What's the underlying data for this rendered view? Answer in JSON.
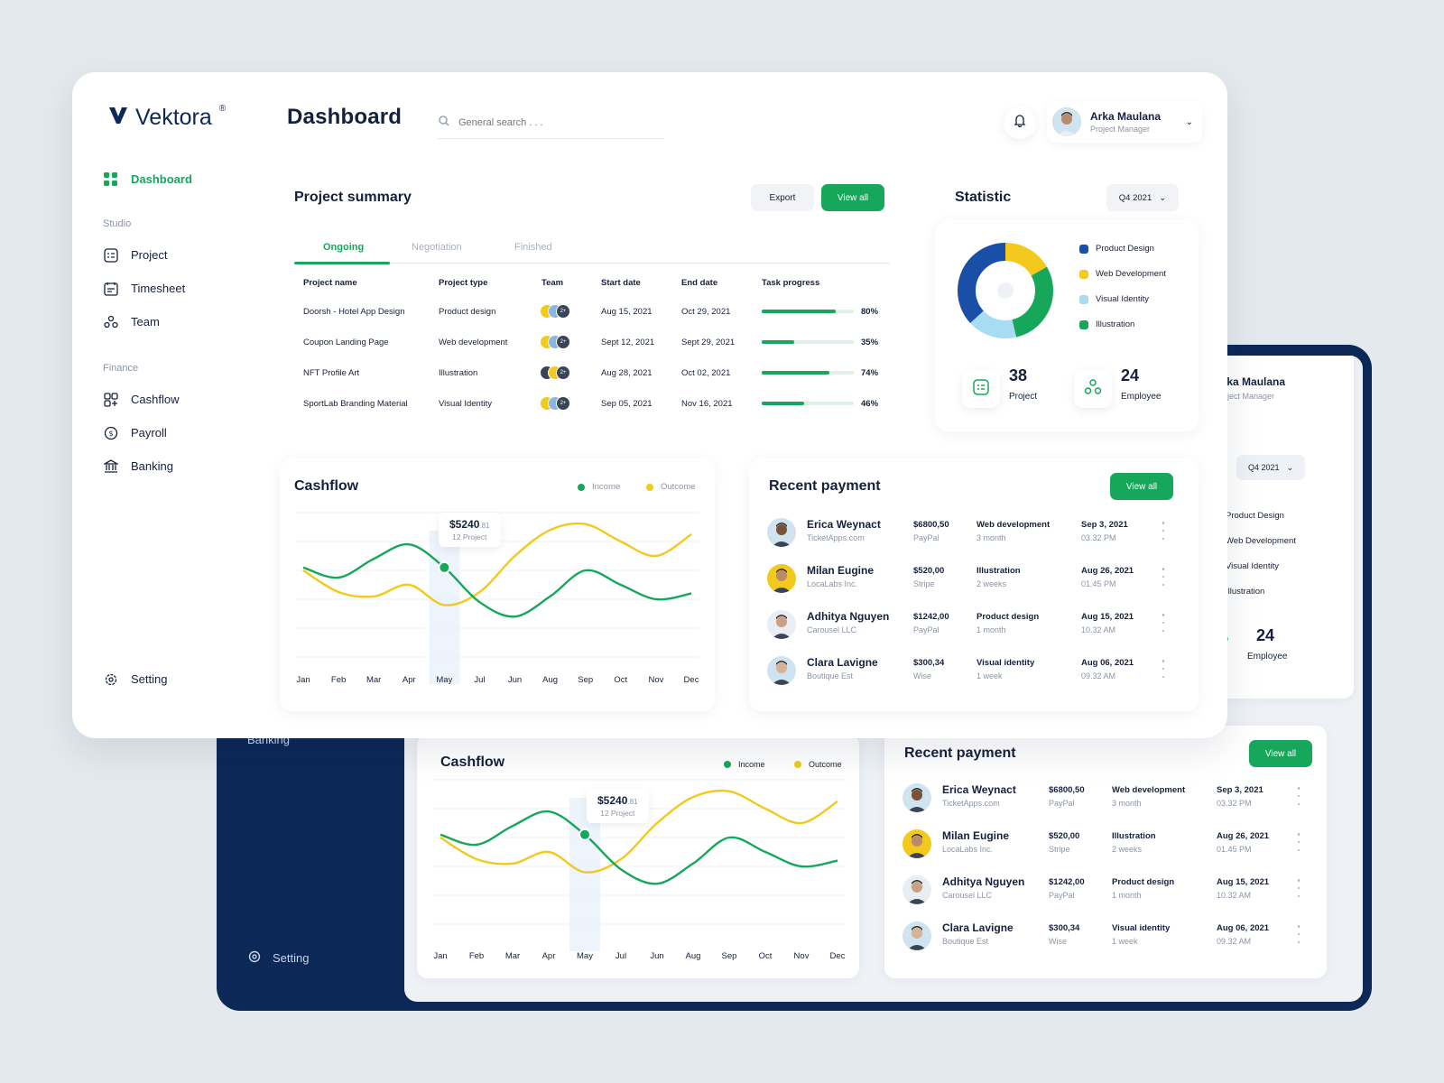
{
  "brand": {
    "name": "Vektora",
    "mark": "®"
  },
  "page_title": "Dashboard",
  "search": {
    "placeholder": "General search . . ."
  },
  "user": {
    "name": "Arka Maulana",
    "role": "Project Manager"
  },
  "sidebar": {
    "dashboard": "Dashboard",
    "studio_section": "Studio",
    "finance_section": "Finance",
    "items": [
      {
        "label": "Project",
        "icon": "project-icon"
      },
      {
        "label": "Timesheet",
        "icon": "timesheet-icon"
      },
      {
        "label": "Team",
        "icon": "team-icon"
      },
      {
        "label": "Cashflow",
        "icon": "cashflow-icon"
      },
      {
        "label": "Payroll",
        "icon": "payroll-icon"
      },
      {
        "label": "Banking",
        "icon": "banking-icon"
      }
    ],
    "setting": "Setting"
  },
  "project_summary": {
    "title": "Project summary",
    "export_label": "Export",
    "view_all_label": "View all",
    "tabs": [
      "Ongoing",
      "Negotiation",
      "Finished"
    ],
    "columns": [
      "Project name",
      "Project type",
      "Team",
      "Start date",
      "End date",
      "Task progress"
    ],
    "rows": [
      {
        "name": "Doorsh - Hotel App Design",
        "type": "Product design",
        "start": "Aug 15, 2021",
        "end": "Oct 29, 2021",
        "progress": 80,
        "progress_label": "80%",
        "more": "2+"
      },
      {
        "name": "Coupon Landing Page",
        "type": "Web development",
        "start": "Sept 12, 2021",
        "end": "Sept 29, 2021",
        "progress": 35,
        "progress_label": "35%",
        "more": "2+"
      },
      {
        "name": "NFT Profile Art",
        "type": "Illustration",
        "start": "Aug 28, 2021",
        "end": "Oct 02, 2021",
        "progress": 74,
        "progress_label": "74%",
        "more": "2+"
      },
      {
        "name": "SportLab Branding Material",
        "type": "Visual Identity",
        "start": "Sep 05, 2021",
        "end": "Nov 16, 2021",
        "progress": 46,
        "progress_label": "46%",
        "more": "2+"
      }
    ]
  },
  "statistic": {
    "title": "Statistic",
    "period": "Q4 2021",
    "legend": [
      {
        "label": "Product Design",
        "color": "#1a4fa8"
      },
      {
        "label": "Web Development",
        "color": "#f2c91c"
      },
      {
        "label": "Visual Identity",
        "color": "#a8dcf2"
      },
      {
        "label": "Illustration",
        "color": "#17a75a"
      }
    ],
    "project_count": "38",
    "project_label": "Project",
    "employee_count": "24",
    "employee_label": "Employee"
  },
  "cashflow": {
    "title": "Cashflow",
    "legend_income": "Income",
    "legend_outcome": "Outcome",
    "tooltip_value": "$5240",
    "tooltip_cents": ".81",
    "tooltip_sub": "12 Project"
  },
  "recent_payment": {
    "title": "Recent payment",
    "view_all_label": "View all",
    "rows": [
      {
        "name": "Erica Weynact",
        "company": "TicketApps.com",
        "amount": "$6800,50",
        "method": "PayPal",
        "category": "Web development",
        "duration": "3 month",
        "date": "Sep 3, 2021",
        "time": "03.32 PM"
      },
      {
        "name": "Milan Eugine",
        "company": "LocaLabs Inc.",
        "amount": "$520,00",
        "method": "Stripe",
        "category": "Illustration",
        "duration": "2 weeks",
        "date": "Aug 26, 2021",
        "time": "01.45 PM"
      },
      {
        "name": "Adhitya Nguyen",
        "company": "Carousel LLC",
        "amount": "$1242,00",
        "method": "PayPal",
        "category": "Product design",
        "duration": "1 month",
        "date": "Aug 15, 2021",
        "time": "10.32 AM"
      },
      {
        "name": "Clara Lavigne",
        "company": "Boutique Est",
        "amount": "$300,34",
        "method": "Wise",
        "category": "Visual identity",
        "duration": "1 week",
        "date": "Aug 06, 2021",
        "time": "09.32 AM"
      }
    ]
  },
  "chart_data": {
    "type": "line",
    "categories": [
      "Jan",
      "Feb",
      "Mar",
      "Apr",
      "May",
      "Jul",
      "Jun",
      "Aug",
      "Sep",
      "Oct",
      "Nov",
      "Dec"
    ],
    "series": [
      {
        "name": "Income",
        "color": "#17a75a",
        "values": [
          62,
          55,
          68,
          78,
          62,
          38,
          28,
          42,
          60,
          50,
          40,
          44
        ]
      },
      {
        "name": "Outcome",
        "color": "#f2c91c",
        "values": [
          60,
          45,
          42,
          50,
          36,
          45,
          70,
          88,
          92,
          80,
          70,
          85
        ]
      }
    ],
    "highlight_category": "May"
  }
}
